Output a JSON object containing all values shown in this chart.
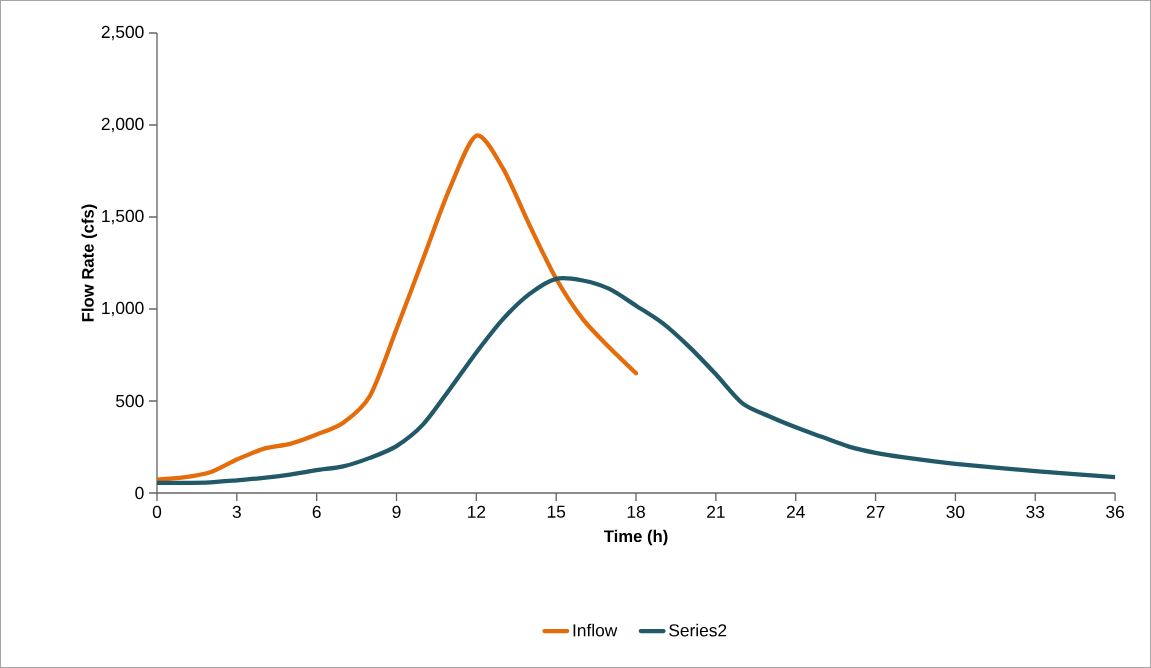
{
  "chart_data": {
    "type": "line",
    "xlabel": "Time (h)",
    "ylabel": "Flow Rate (cfs)",
    "series": [
      {
        "name": "Inflow",
        "color": "#e46c0a",
        "x": [
          0,
          1,
          2,
          3,
          4,
          5,
          6,
          7,
          8,
          9,
          10,
          11,
          12,
          13,
          14,
          15,
          16,
          17,
          18
        ],
        "values": [
          73,
          85,
          113,
          182,
          240,
          267,
          318,
          382,
          527,
          891,
          1273,
          1655,
          1942,
          1764,
          1455,
          1164,
          945,
          791,
          651
        ]
      },
      {
        "name": "Series2",
        "color": "#215968",
        "x": [
          0,
          1,
          2,
          3,
          4,
          5,
          6,
          7,
          8,
          9,
          10,
          11,
          12,
          13,
          14,
          15,
          16,
          17,
          18,
          19,
          20,
          21,
          22,
          23,
          24,
          25,
          26,
          27,
          28,
          30,
          33,
          36
        ],
        "values": [
          55,
          55,
          58,
          69,
          82,
          100,
          124,
          145,
          191,
          255,
          373,
          564,
          764,
          945,
          1082,
          1164,
          1155,
          1109,
          1018,
          923,
          794,
          645,
          487,
          417,
          357,
          304,
          252,
          218,
          195,
          159,
          119,
          87
        ]
      }
    ],
    "xlim": [
      0,
      36
    ],
    "xticks": [
      0,
      3,
      6,
      9,
      12,
      15,
      18,
      21,
      24,
      27,
      30,
      33,
      36
    ],
    "ylim": [
      0,
      2500
    ],
    "yticks": [
      0,
      500,
      {
        "value": 1000,
        "label": "1,000"
      },
      {
        "value": 1500,
        "label": "1,500"
      },
      {
        "value": 2000,
        "label": "2,000"
      },
      {
        "value": 2500,
        "label": "2,500"
      }
    ],
    "grid": false,
    "legend": "bottom",
    "marker": "none",
    "line_style": "solid"
  }
}
